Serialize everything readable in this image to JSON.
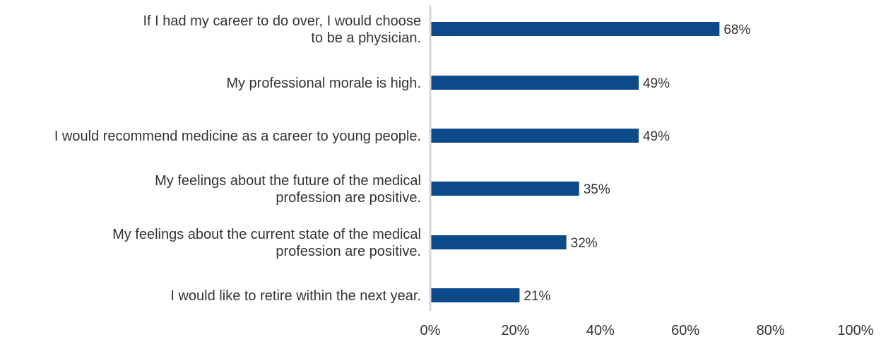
{
  "chart_data": {
    "type": "bar",
    "orientation": "horizontal",
    "categories": [
      [
        "If I had my career to do over, I would choose",
        "to be a physician."
      ],
      [
        "My professional morale is high."
      ],
      [
        "I would recommend medicine as a career to young people."
      ],
      [
        "My feelings about the future of the medical",
        "profession are positive."
      ],
      [
        "My feelings about the current state of the medical",
        "profession are positive."
      ],
      [
        "I would like to retire within the next year."
      ]
    ],
    "values": [
      68,
      49,
      49,
      35,
      32,
      21
    ],
    "value_labels": [
      "68%",
      "49%",
      "49%",
      "35%",
      "32%",
      "21%"
    ],
    "xlim": [
      0,
      100
    ],
    "x_ticks": [
      "0%",
      "20%",
      "40%",
      "60%",
      "80%",
      "100%"
    ],
    "bar_color": "#0d4a8a",
    "axis_color": "#d6d6d6",
    "grid": false,
    "legend": "none"
  }
}
